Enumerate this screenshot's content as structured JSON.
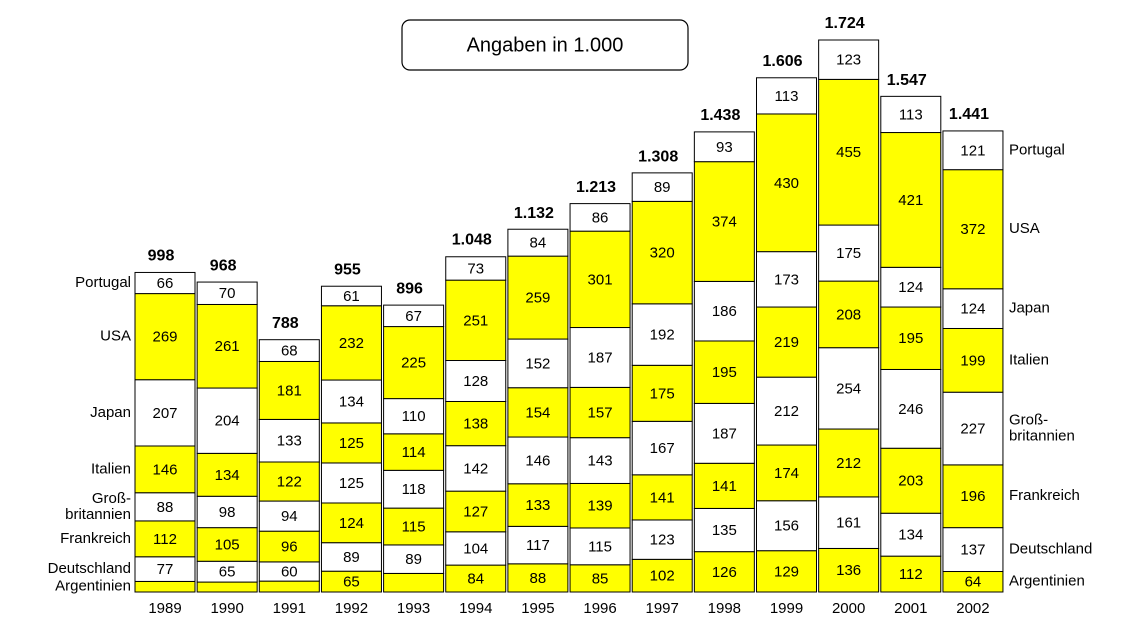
{
  "chart_data": {
    "type": "stacked_bar",
    "annotation": "Angaben in 1.000",
    "categories": [
      "1989",
      "1990",
      "1991",
      "1992",
      "1993",
      "1994",
      "1995",
      "1996",
      "1997",
      "1998",
      "1999",
      "2000",
      "2001",
      "2002"
    ],
    "series": [
      {
        "name": "Argentinien",
        "color": "#ffff00",
        "values": [
          33,
          31,
          34,
          65,
          58,
          84,
          88,
          85,
          102,
          126,
          129,
          136,
          112,
          64
        ],
        "value_labels": [
          null,
          null,
          null,
          "65",
          null,
          "84",
          "88",
          "85",
          "102",
          "126",
          "129",
          "136",
          "112",
          "64"
        ]
      },
      {
        "name": "Deutschland",
        "color": "#ffffff",
        "values": [
          77,
          65,
          60,
          89,
          89,
          104,
          117,
          115,
          123,
          135,
          156,
          161,
          134,
          137
        ]
      },
      {
        "name": "Frankreich",
        "color": "#ffff00",
        "values": [
          112,
          105,
          96,
          124,
          115,
          127,
          133,
          139,
          141,
          141,
          174,
          212,
          203,
          196
        ]
      },
      {
        "name": "Groß-\nbritannien",
        "color": "#ffffff",
        "values": [
          88,
          98,
          94,
          125,
          118,
          142,
          146,
          143,
          167,
          187,
          212,
          254,
          246,
          227
        ]
      },
      {
        "name": "Italien",
        "color": "#ffff00",
        "values": [
          146,
          134,
          122,
          125,
          114,
          138,
          154,
          157,
          175,
          195,
          219,
          208,
          195,
          199
        ]
      },
      {
        "name": "Japan",
        "color": "#ffffff",
        "values": [
          207,
          204,
          133,
          134,
          110,
          128,
          152,
          187,
          192,
          186,
          173,
          175,
          124,
          124
        ]
      },
      {
        "name": "USA",
        "color": "#ffff00",
        "values": [
          269,
          261,
          181,
          232,
          225,
          251,
          259,
          301,
          320,
          374,
          430,
          455,
          421,
          372
        ]
      },
      {
        "name": "Portugal",
        "color": "#ffffff",
        "values": [
          66,
          70,
          68,
          61,
          67,
          73,
          84,
          86,
          89,
          93,
          113,
          123,
          113,
          121
        ]
      }
    ],
    "totals": {
      "values": [
        998,
        968,
        788,
        955,
        896,
        1048,
        1132,
        1213,
        1308,
        1438,
        1606,
        1724,
        1547,
        1441
      ],
      "value_labels": [
        "998",
        "968",
        "788",
        "955",
        "896",
        "1.048",
        "1.132",
        "1.213",
        "1.308",
        "1.438",
        "1.606",
        "1.724",
        "1.547",
        "1.441"
      ]
    }
  }
}
